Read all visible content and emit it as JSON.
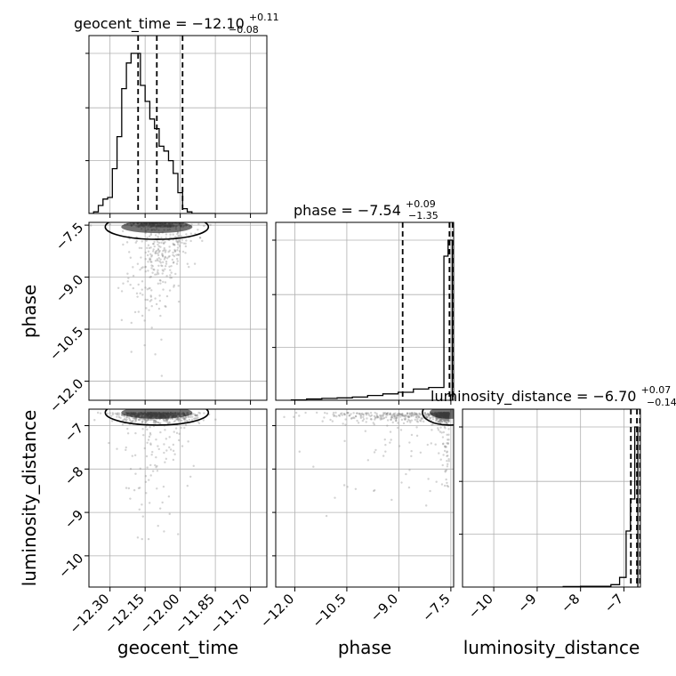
{
  "chart_data": {
    "type": "corner",
    "parameters": [
      "geocent_time",
      "phase",
      "luminosity_distance"
    ],
    "colors": {
      "line": "#000000",
      "grid": "#b0b0b0",
      "scatter": "#808080",
      "density": "#000000"
    },
    "grid": true,
    "titles": [
      {
        "prefix": "geocent_time = −12.10",
        "sup": "+0.11",
        "sub": "−0.08"
      },
      {
        "prefix": "phase = −7.54",
        "sup": "+0.09",
        "sub": "−1.35"
      },
      {
        "prefix": "luminosity_distance = −6.70",
        "sup": "+0.07",
        "sub": "−0.14"
      }
    ],
    "xlabels": [
      "geocent_time",
      "phase",
      "luminosity_distance"
    ],
    "ylabels": [
      "",
      "phase",
      "luminosity_distance"
    ],
    "axes": {
      "geocent_time": {
        "range": [
          -12.39,
          -11.63
        ],
        "ticks": [
          -12.3,
          -12.15,
          -12.0,
          -11.85,
          -11.7
        ],
        "tick_labels": [
          "−12.30",
          "−12.15",
          "−12.00",
          "−11.85",
          "−11.70"
        ]
      },
      "phase": {
        "range": [
          -12.55,
          -7.42
        ],
        "ticks": [
          -12.0,
          -10.5,
          -9.0,
          -7.5
        ],
        "tick_labels": [
          "−12.0",
          "−10.5",
          "−9.0",
          "−7.5"
        ]
      },
      "luminosity_distance": {
        "range": [
          -10.72,
          -6.62
        ],
        "ticks": [
          -10,
          -9,
          -8,
          -7
        ],
        "tick_labels": [
          "−10",
          "−9",
          "−8",
          "−7"
        ]
      }
    },
    "histograms": [
      {
        "parameter": "geocent_time",
        "bin_edges": [
          -12.39,
          -12.37,
          -12.35,
          -12.33,
          -12.31,
          -12.29,
          -12.27,
          -12.25,
          -12.23,
          -12.21,
          -12.19,
          -12.17,
          -12.15,
          -12.13,
          -12.11,
          -12.09,
          -12.07,
          -12.05,
          -12.03,
          -12.01,
          -11.99,
          -11.97,
          -11.95,
          -11.93,
          -11.91,
          -11.89,
          -11.87,
          -11.85
        ],
        "counts": [
          0,
          1,
          5,
          9,
          10,
          28,
          48,
          78,
          94,
          100,
          100,
          80,
          70,
          59,
          53,
          42,
          39,
          33,
          25,
          13,
          3,
          1,
          0,
          0,
          0,
          0,
          0
        ],
        "quantiles": [
          -12.18,
          -12.1,
          -11.99
        ]
      },
      {
        "parameter": "phase",
        "bin_edges": [
          -12.1,
          -11.66,
          -11.22,
          -10.78,
          -10.34,
          -9.9,
          -9.46,
          -9.02,
          -8.58,
          -8.14,
          -7.7,
          -7.58,
          -7.46
        ],
        "counts": [
          0.2,
          0.8,
          1.2,
          1.5,
          2,
          3,
          4,
          5,
          7,
          8,
          90,
          100
        ],
        "quantiles": [
          -8.89,
          -7.54,
          -7.45
        ]
      },
      {
        "parameter": "luminosity_distance",
        "bin_edges": [
          -9.0,
          -8.4,
          -8.0,
          -7.3,
          -7.1,
          -6.95,
          -6.85,
          -6.75,
          -6.68
        ],
        "counts": [
          0,
          0.3,
          0.5,
          1.5,
          6,
          35,
          55,
          100
        ],
        "quantiles": [
          -6.84,
          -6.7,
          -6.63
        ]
      }
    ],
    "tick_label_rotation_deg": 45
  }
}
